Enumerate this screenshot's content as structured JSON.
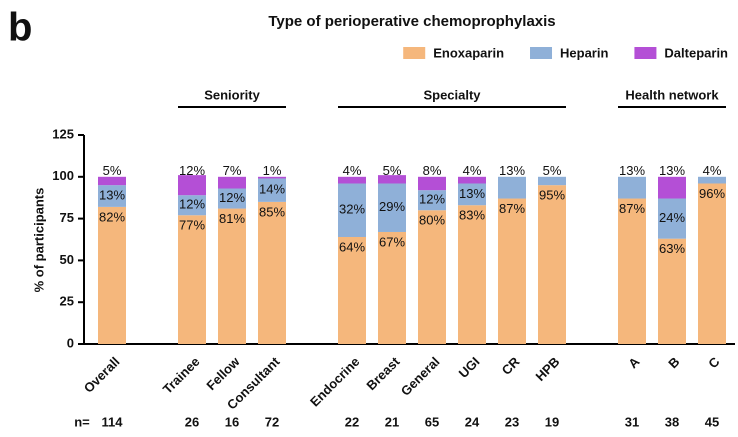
{
  "chart_data": {
    "type": "stacked_bar",
    "panel": "b",
    "title": "Type of perioperative chemoprophylaxis",
    "ylabel": "% of participants",
    "categories": [
      "Overall",
      "Trainee",
      "Fellow",
      "Consultant",
      "Endocrine",
      "Breast",
      "General",
      "UGI",
      "CR",
      "HPB",
      "A",
      "B",
      "C"
    ],
    "groups": [
      {
        "label": "Seniority",
        "members": [
          "Trainee",
          "Fellow",
          "Consultant"
        ]
      },
      {
        "label": "Specialty",
        "members": [
          "Endocrine",
          "Breast",
          "General",
          "UGI",
          "CR",
          "HPB"
        ]
      },
      {
        "label": "Health network",
        "members": [
          "A",
          "B",
          "C"
        ]
      }
    ],
    "series": [
      {
        "name": "Enoxaparin",
        "color": "#f5b77c",
        "values": [
          82,
          77,
          81,
          85,
          64,
          67,
          80,
          83,
          87,
          95,
          87,
          63,
          96
        ],
        "value_labels": [
          "82%",
          "77%",
          "81%",
          "85%",
          "64%",
          "67%",
          "80%",
          "83%",
          "87%",
          "95%",
          "87%",
          "63%",
          "96%"
        ]
      },
      {
        "name": "Heparin",
        "color": "#8fb0d8",
        "values": [
          13,
          12,
          12,
          14,
          32,
          29,
          12,
          13,
          13,
          5,
          13,
          24,
          4
        ],
        "value_labels": [
          "13%",
          "12%",
          "12%",
          "14%",
          "32%",
          "29%",
          "12%",
          "13%",
          "13%",
          "5%",
          "13%",
          "24%",
          "4%"
        ]
      },
      {
        "name": "Dalteparin",
        "color": "#b44fd6",
        "values": [
          5,
          12,
          7,
          1,
          4,
          5,
          8,
          4,
          0,
          0,
          0,
          13,
          0
        ],
        "value_labels": [
          "5%",
          "12%",
          "7%",
          "1%",
          "4%",
          "5%",
          "8%",
          "4%",
          null,
          null,
          null,
          "13%",
          null
        ]
      }
    ],
    "n_label": "n=",
    "n": [
      114,
      26,
      16,
      72,
      22,
      21,
      65,
      24,
      23,
      19,
      31,
      38,
      45
    ],
    "ylim": [
      0,
      125
    ],
    "yticks": [
      0,
      25,
      50,
      75,
      100,
      125
    ],
    "legend": "top-right"
  }
}
